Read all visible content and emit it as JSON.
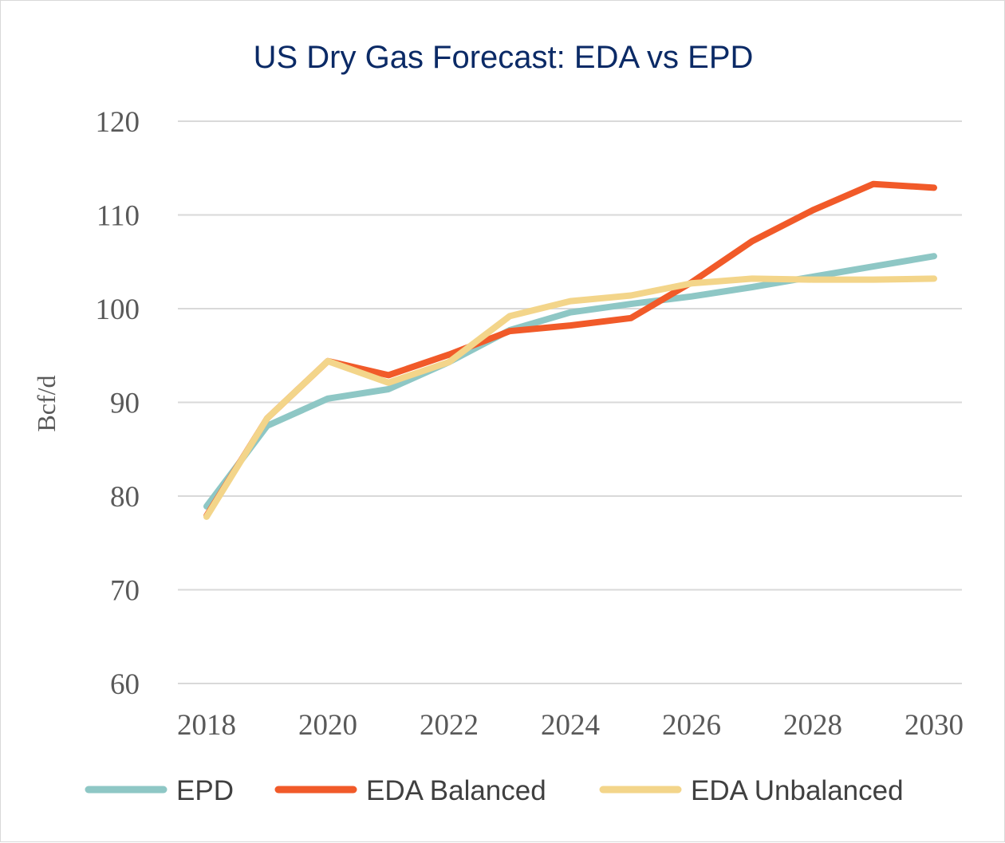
{
  "chart_data": {
    "type": "line",
    "title": "US Dry Gas Forecast: EDA vs EPD",
    "xlabel": "",
    "ylabel": "Bcf/d",
    "x": [
      2018,
      2019,
      2020,
      2021,
      2022,
      2023,
      2024,
      2025,
      2026,
      2027,
      2028,
      2029,
      2030
    ],
    "xlim": [
      2018,
      2030
    ],
    "x_tick_labels": [
      "2018",
      "2020",
      "2022",
      "2024",
      "2026",
      "2028",
      "2030"
    ],
    "ylim": [
      60,
      120
    ],
    "y_tick_labels": [
      "60",
      "70",
      "80",
      "90",
      "100",
      "110",
      "120"
    ],
    "grid": true,
    "legend_position": "bottom",
    "series": [
      {
        "name": "EPD",
        "color": "#8ec7c5",
        "values": [
          78.9,
          87.5,
          90.4,
          91.4,
          94.3,
          97.7,
          99.6,
          100.5,
          101.3,
          102.3,
          103.4,
          104.5,
          105.6
        ]
      },
      {
        "name": "EDA Balanced",
        "color": "#f15a29",
        "values": [
          77.9,
          88.3,
          94.4,
          92.9,
          95.1,
          97.6,
          98.2,
          99.0,
          102.8,
          107.2,
          110.5,
          113.3,
          112.9
        ]
      },
      {
        "name": "EDA Unbalanced",
        "color": "#f3d58a",
        "values": [
          77.8,
          88.3,
          94.4,
          92.1,
          94.3,
          99.2,
          100.8,
          101.4,
          102.7,
          103.2,
          103.1,
          103.1,
          103.2
        ]
      }
    ]
  }
}
